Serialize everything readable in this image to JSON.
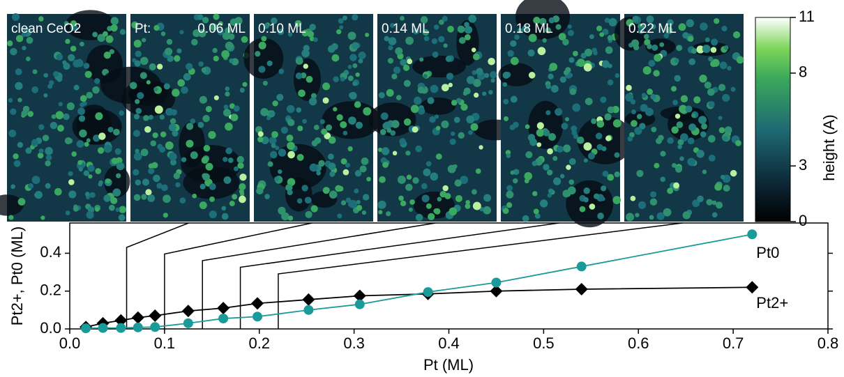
{
  "chart_data": {
    "type": "line",
    "panels": [
      {
        "label": "clean CeO2"
      },
      {
        "prefix": "Pt:",
        "label": "0.06 ML"
      },
      {
        "label": "0.10 ML"
      },
      {
        "label": "0.14 ML"
      },
      {
        "label": "0.18 ML"
      },
      {
        "label": "0.22 ML"
      }
    ],
    "panel_coverages": [
      0.06,
      0.1,
      0.14,
      0.18,
      0.22
    ],
    "colorbar": {
      "label": "height (A)",
      "lim": [
        0,
        11
      ],
      "ticks": [
        0,
        3,
        8,
        11
      ]
    },
    "x_label": "Pt (ML)",
    "y_label": "Pt2+, Pt0 (ML)",
    "x": [
      0.017,
      0.035,
      0.054,
      0.072,
      0.09,
      0.125,
      0.162,
      0.198,
      0.252,
      0.306,
      0.378,
      0.45,
      0.54,
      0.72
    ],
    "series": [
      {
        "name": "Pt2+",
        "color": "#000000",
        "marker": "diamond",
        "values": [
          0.01,
          0.03,
          0.045,
          0.06,
          0.07,
          0.095,
          0.11,
          0.135,
          0.155,
          0.175,
          0.185,
          0.2,
          0.21,
          0.22
        ]
      },
      {
        "name": "Pt0",
        "color": "#1a9a98",
        "marker": "circle",
        "values": [
          0.003,
          0.005,
          0.005,
          0.008,
          0.01,
          0.03,
          0.055,
          0.065,
          0.1,
          0.13,
          0.195,
          0.245,
          0.33,
          0.5
        ]
      }
    ],
    "xlim": [
      0,
      0.8
    ],
    "ylim": [
      0,
      0.56
    ],
    "xticks": [
      {
        "value": 0,
        "label": "0.0"
      },
      0.1,
      0.2,
      0.3,
      0.4,
      0.5,
      0.6,
      0.7,
      0.8
    ],
    "yticks": [
      {
        "value": 0,
        "label": "0.0"
      },
      0.2,
      0.4
    ]
  }
}
